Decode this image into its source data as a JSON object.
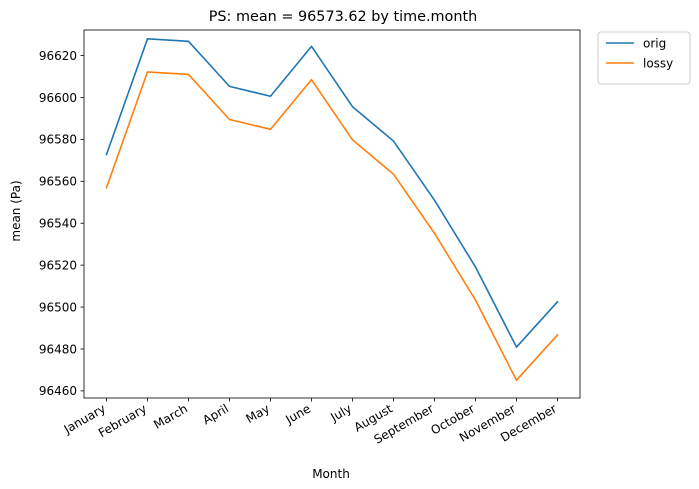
{
  "chart_data": {
    "type": "line",
    "title": "PS: mean =  96573.62 by time.month",
    "xlabel": "Month",
    "ylabel": "mean (Pa)",
    "categories": [
      "January",
      "February",
      "March",
      "April",
      "May",
      "June",
      "July",
      "August",
      "September",
      "October",
      "November",
      "December"
    ],
    "series": [
      {
        "name": "orig",
        "color": "#1f77b4",
        "values": [
          96572.8,
          96628.0,
          96626.8,
          96605.3,
          96600.6,
          96624.4,
          96595.6,
          96579.2,
          96551.0,
          96519.1,
          96480.9,
          96502.5
        ]
      },
      {
        "name": "lossy",
        "color": "#ff7f0e",
        "values": [
          96557.0,
          96612.2,
          96611.0,
          96589.5,
          96584.8,
          96608.5,
          96579.8,
          96563.4,
          96535.2,
          96503.3,
          96465.1,
          96486.7
        ]
      }
    ],
    "yticks": [
      96460,
      96480,
      96500,
      96520,
      96540,
      96560,
      96580,
      96600,
      96620
    ],
    "ylim": [
      96456.6,
      96632.2
    ],
    "grid": false,
    "legend": "outside-top-right"
  }
}
